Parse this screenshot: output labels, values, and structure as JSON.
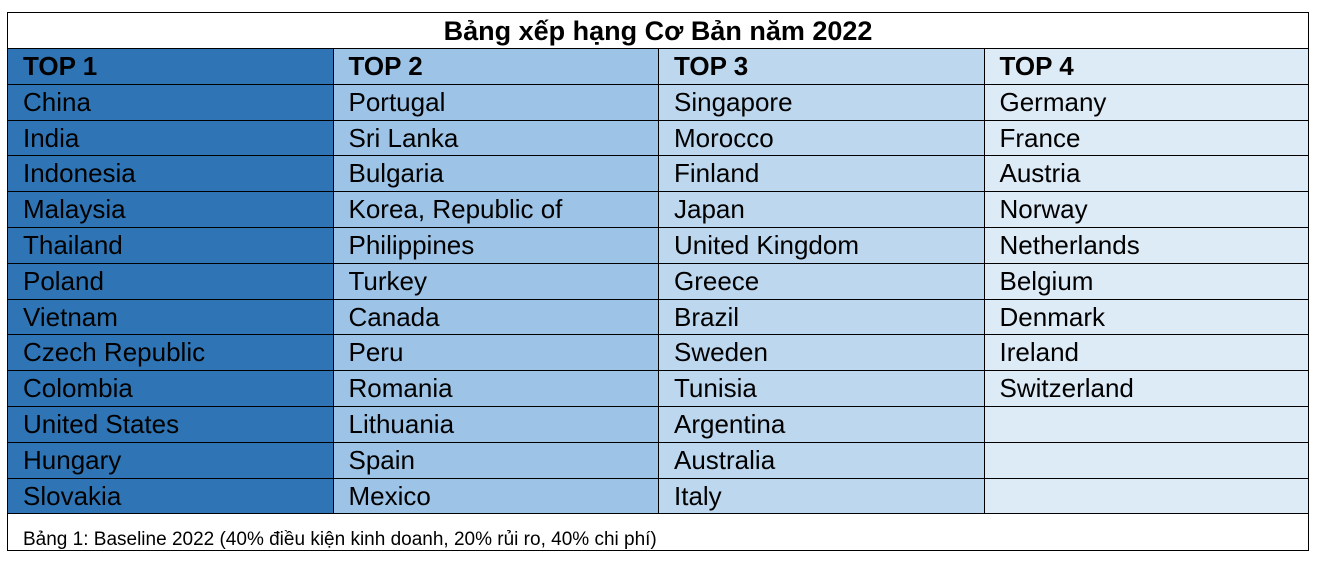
{
  "table": {
    "title": "Bảng xếp hạng Cơ Bản năm 2022",
    "columns": [
      {
        "header": "TOP 1",
        "items": [
          "China",
          "India",
          "Indonesia",
          "Malaysia",
          "Thailand",
          "Poland",
          "Vietnam",
          "Czech Republic",
          "Colombia",
          "United States",
          "Hungary",
          "Slovakia"
        ]
      },
      {
        "header": "TOP 2",
        "items": [
          "Portugal",
          "Sri Lanka",
          "Bulgaria",
          "Korea, Republic of",
          "Philippines",
          "Turkey",
          "Canada",
          "Peru",
          "Romania",
          "Lithuania",
          "Spain",
          "Mexico"
        ]
      },
      {
        "header": "TOP 3",
        "items": [
          "Singapore",
          "Morocco",
          "Finland",
          "Japan",
          "United Kingdom",
          "Greece",
          "Brazil",
          "Sweden",
          "Tunisia",
          "Argentina",
          "Australia",
          "Italy"
        ]
      },
      {
        "header": "TOP 4",
        "items": [
          "Germany",
          "France",
          "Austria",
          "Norway",
          "Netherlands",
          "Belgium",
          "Denmark",
          "Ireland",
          "Switzerland"
        ]
      }
    ],
    "caption": "Bảng 1: Baseline 2022 (40% điều kiện kinh doanh, 20% rủi ro, 40% chi phí)"
  }
}
